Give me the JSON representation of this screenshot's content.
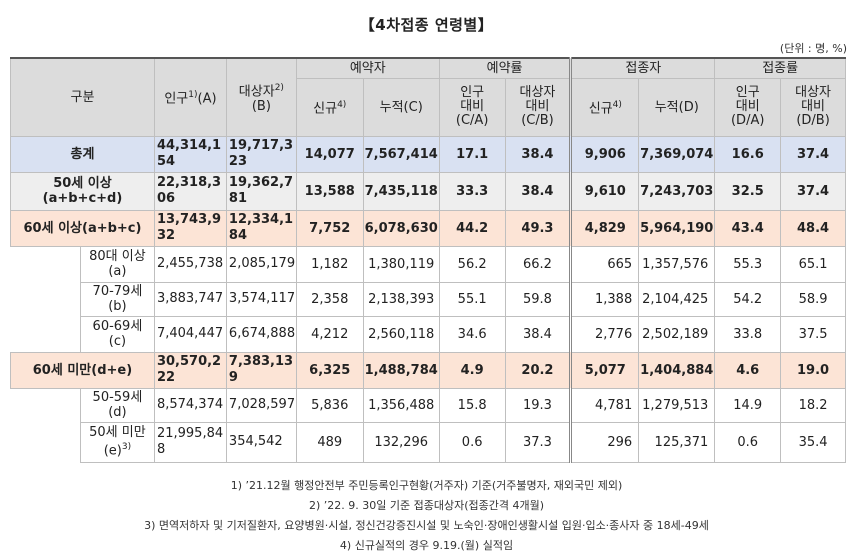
{
  "title": "【4차접종 연령별】",
  "unit": "(단위 : 명, %)",
  "headers": {
    "category": "구분",
    "population": "인구",
    "population_note": "1)",
    "population_suffix": "(A)",
    "target": "대상자",
    "target_note": "2)",
    "target_suffix": "(B)",
    "reserve": "예약자",
    "reserve_rate": "예약률",
    "vacc": "접종자",
    "vacc_rate": "접종률",
    "new": "신규",
    "new_note": "4)",
    "cum_c": "누적(C)",
    "pop_ratio_ca": "인구\n대비\n(C/A)",
    "tgt_ratio_cb": "대상자\n대비\n(C/B)",
    "cum_d": "누적(D)",
    "pop_ratio_da": "인구\n대비\n(D/A)",
    "tgt_ratio_db": "대상자\n대비\n(D/B)"
  },
  "rows": [
    {
      "label": "총계",
      "pop": "44,314,154",
      "tgt": "19,717,323",
      "rnew": "14,077",
      "rcum": "7,567,414",
      "rca": "17.1",
      "rcb": "38.4",
      "vnew": "9,906",
      "vcum": "7,369,074",
      "vda": "16.6",
      "vdb": "37.4"
    },
    {
      "label": "50세 이상\n(a+b+c+d)",
      "pop": "22,318,306",
      "tgt": "19,362,781",
      "rnew": "13,588",
      "rcum": "7,435,118",
      "rca": "33.3",
      "rcb": "38.4",
      "vnew": "9,610",
      "vcum": "7,243,703",
      "vda": "32.5",
      "vdb": "37.4"
    },
    {
      "label": "60세 이상(a+b+c)",
      "pop": "13,743,932",
      "tgt": "12,334,184",
      "rnew": "7,752",
      "rcum": "6,078,630",
      "rca": "44.2",
      "rcb": "49.3",
      "vnew": "4,829",
      "vcum": "5,964,190",
      "vda": "43.4",
      "vdb": "48.4"
    },
    {
      "label": "80대 이상\n(a)",
      "pop": "2,455,738",
      "tgt": "2,085,179",
      "rnew": "1,182",
      "rcum": "1,380,119",
      "rca": "56.2",
      "rcb": "66.2",
      "vnew": "665",
      "vcum": "1,357,576",
      "vda": "55.3",
      "vdb": "65.1"
    },
    {
      "label": "70-79세\n(b)",
      "pop": "3,883,747",
      "tgt": "3,574,117",
      "rnew": "2,358",
      "rcum": "2,138,393",
      "rca": "55.1",
      "rcb": "59.8",
      "vnew": "1,388",
      "vcum": "2,104,425",
      "vda": "54.2",
      "vdb": "58.9"
    },
    {
      "label": "60-69세\n(c)",
      "pop": "7,404,447",
      "tgt": "6,674,888",
      "rnew": "4,212",
      "rcum": "2,560,118",
      "rca": "34.6",
      "rcb": "38.4",
      "vnew": "2,776",
      "vcum": "2,502,189",
      "vda": "33.8",
      "vdb": "37.5"
    },
    {
      "label": "60세 미만(d+e)",
      "pop": "30,570,222",
      "tgt": "7,383,139",
      "rnew": "6,325",
      "rcum": "1,488,784",
      "rca": "4.9",
      "rcb": "20.2",
      "vnew": "5,077",
      "vcum": "1,404,884",
      "vda": "4.6",
      "vdb": "19.0"
    },
    {
      "label": "50-59세\n(d)",
      "pop": "8,574,374",
      "tgt": "7,028,597",
      "rnew": "5,836",
      "rcum": "1,356,488",
      "rca": "15.8",
      "rcb": "19.3",
      "vnew": "4,781",
      "vcum": "1,279,513",
      "vda": "14.9",
      "vdb": "18.2"
    },
    {
      "label": "50세 미만\n(e)",
      "label_note": "3)",
      "pop": "21,995,848",
      "tgt": "354,542",
      "rnew": "489",
      "rcum": "132,296",
      "rca": "0.6",
      "rcb": "37.3",
      "vnew": "296",
      "vcum": "125,371",
      "vda": "0.6",
      "vdb": "35.4"
    }
  ],
  "notes": [
    "1) ’21.12월 행정안전부 주민등록인구현황(거주자) 기준(거주불명자, 재외국민 제외)",
    "2) ’22. 9. 30일 기준 접종대상자(접종간격 4개월)",
    "3) 면역저하자 및 기저질환자, 요양병원·시설, 정신건강증진시설 및 노숙인·장애인생활시설 입원·입소·종사자 중 18세-49세",
    "4) 신규실적의 경우 9.19.(월) 실적임"
  ]
}
